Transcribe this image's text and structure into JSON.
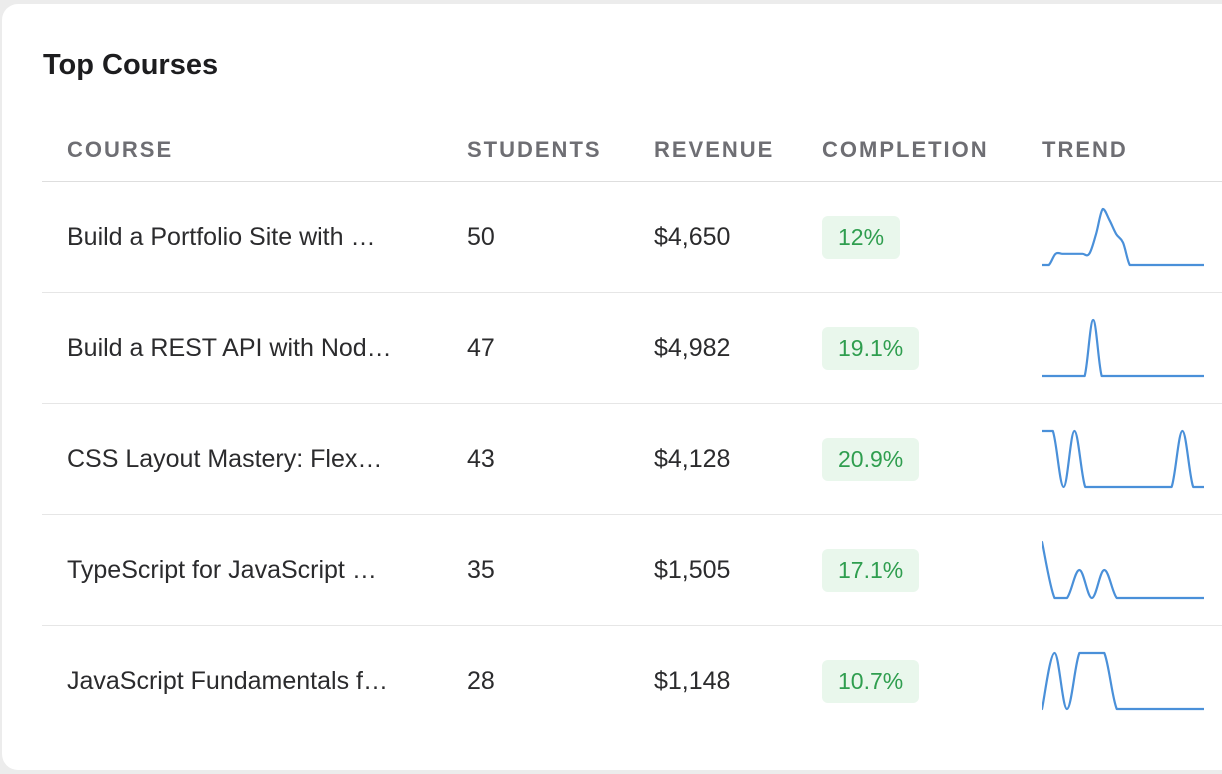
{
  "card": {
    "title": "Top Courses"
  },
  "columns": {
    "course": "COURSE",
    "students": "STUDENTS",
    "revenue": "REVENUE",
    "completion": "COMPLETION",
    "trend": "TREND"
  },
  "colors": {
    "trend_line": "#4a90d9",
    "completion_text": "#2f9e4f",
    "completion_bg": "#e9f7ec"
  },
  "rows": [
    {
      "course": "Build a Portfolio Site with …",
      "students": "50",
      "revenue": "$4,650",
      "completion": "12%",
      "trend": [
        0,
        0,
        0.2,
        0.2,
        0.2,
        0.2,
        0.2,
        0.2,
        0.55,
        1,
        0.8,
        0.55,
        0.4,
        0,
        0,
        0,
        0,
        0,
        0,
        0,
        0,
        0,
        0,
        0,
        0
      ]
    },
    {
      "course": "Build a REST API with Nod…",
      "students": "47",
      "revenue": "$4,982",
      "completion": "19.1%",
      "trend": [
        0,
        0,
        0,
        0,
        0,
        0,
        1,
        0,
        0,
        0,
        0,
        0,
        0,
        0,
        0,
        0,
        0,
        0,
        0,
        0
      ]
    },
    {
      "course": "CSS Layout Mastery: Flex…",
      "students": "43",
      "revenue": "$4,128",
      "completion": "20.9%",
      "trend": [
        1,
        1,
        0,
        1,
        0,
        0,
        0,
        0,
        0,
        0,
        0,
        0,
        0,
        1,
        0,
        0
      ]
    },
    {
      "course": "TypeScript for JavaScript …",
      "students": "35",
      "revenue": "$1,505",
      "completion": "17.1%",
      "trend": [
        1,
        0,
        0,
        0.5,
        0,
        0.5,
        0,
        0,
        0,
        0,
        0,
        0,
        0,
        0
      ]
    },
    {
      "course": "JavaScript Fundamentals f…",
      "students": "28",
      "revenue": "$1,148",
      "completion": "10.7%",
      "trend": [
        0,
        1,
        0,
        1,
        1,
        1,
        0,
        0,
        0,
        0,
        0,
        0,
        0,
        0
      ]
    }
  ]
}
